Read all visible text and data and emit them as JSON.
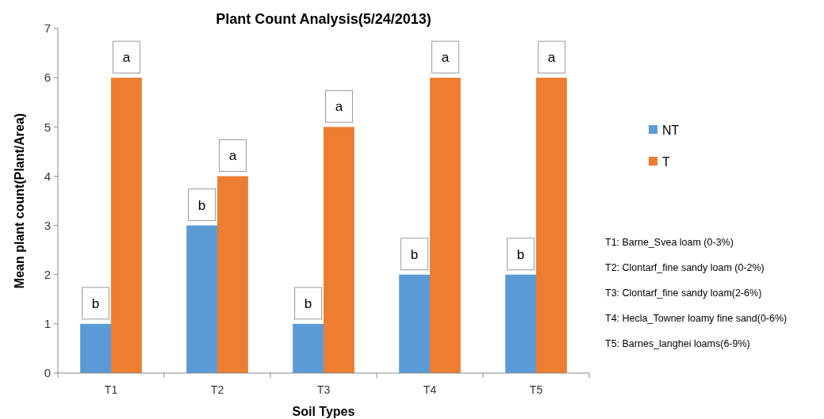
{
  "chart_data": {
    "type": "bar",
    "title": "Plant Count Analysis(5/24/2013)",
    "xlabel": "Soil Types",
    "ylabel": "Mean plant count(Plant/Area)",
    "categories": [
      "T1",
      "T2",
      "T3",
      "T4",
      "T5"
    ],
    "series": [
      {
        "name": "NT",
        "color": "#5b9bd5",
        "values": [
          1,
          3,
          1,
          2,
          2
        ]
      },
      {
        "name": "T",
        "color": "#ed7d31",
        "values": [
          6,
          4,
          5,
          6,
          6
        ]
      }
    ],
    "ylim": [
      0,
      7
    ],
    "yticks": [
      0,
      1,
      2,
      3,
      4,
      5,
      6,
      7
    ],
    "legend": "right",
    "annotations": [
      {
        "text": "b",
        "x": "T1",
        "y": 1
      },
      {
        "text": "a",
        "x": "T1",
        "y": 6
      },
      {
        "text": "b",
        "x": "T2",
        "y": 3
      },
      {
        "text": "a",
        "x": "T2",
        "y": 4
      },
      {
        "text": "b",
        "x": "T3",
        "y": 1
      },
      {
        "text": "a",
        "x": "T3",
        "y": 5
      },
      {
        "text": "b",
        "x": "T4",
        "y": 2
      },
      {
        "text": "a",
        "x": "T4",
        "y": 6
      },
      {
        "text": "b",
        "x": "T5",
        "y": 2
      },
      {
        "text": "a",
        "x": "T5",
        "y": 6
      },
      "T1: Barne_Svea loam (0-3%)",
      "T2: Clontarf_fine sandy loam (0-2%)",
      "T3: Clontarf_fine sandy loam(2-6%)",
      "T4: Hecla_Towner loamy fine sand(0-6%)",
      "T5: Barnes_langhei loams(6-9%)"
    ]
  }
}
